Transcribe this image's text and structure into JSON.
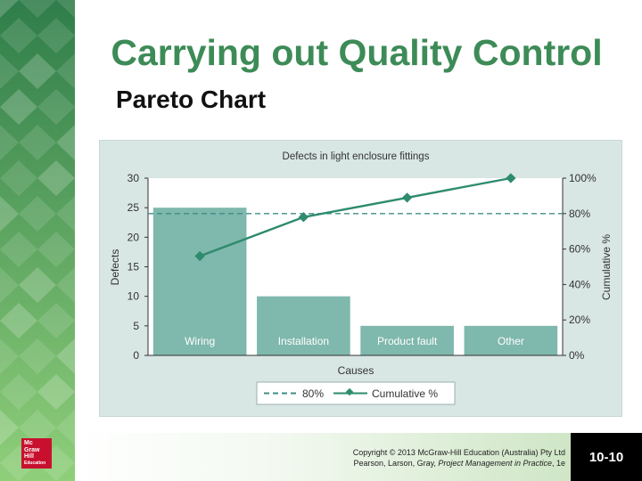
{
  "slide": {
    "title": "Carrying out Quality Control",
    "subtitle": "Pareto Chart"
  },
  "logo": {
    "lines": [
      "Mc",
      "Graw",
      "Hill",
      "Education"
    ],
    "color": "#c8102e"
  },
  "chart_data": {
    "type": "bar",
    "title": "Defects in light enclosure fittings",
    "xlabel": "Causes",
    "ylabel": "Defects",
    "y2label": "Cumulative %",
    "categories": [
      "Wiring",
      "Installation",
      "Product fault",
      "Other"
    ],
    "values": [
      25,
      10,
      5,
      5
    ],
    "cumulative": [
      56,
      78,
      89,
      100
    ],
    "ylim": [
      0,
      30
    ],
    "yticks": [
      "0",
      "5",
      "10",
      "15",
      "20",
      "25",
      "30"
    ],
    "y2lim": [
      0,
      100
    ],
    "y2ticks": [
      "0%",
      "20%",
      "40%",
      "60%",
      "80%",
      "100%"
    ],
    "reference_line": 80,
    "legend": {
      "position": "bottom",
      "entries": [
        "80%",
        "Cumulative %"
      ]
    },
    "colors": {
      "bar": "#7fb8ac",
      "line": "#2e8b6e",
      "reference": "#3f8d85",
      "panel": "#d8e6e4"
    }
  },
  "footer": {
    "copyright_line1": "Copyright © 2013 McGraw-Hill Education (Australia) Pty Ltd",
    "copyright_line2_prefix": "Pearson, Larson, Gray, ",
    "copyright_line2_italic": "Project Management in Practice",
    "copyright_line2_suffix": ", 1e",
    "page_number": "10-10"
  },
  "theme": {
    "title_color": "#3d8b57",
    "strip_color": "#3c8c58"
  }
}
